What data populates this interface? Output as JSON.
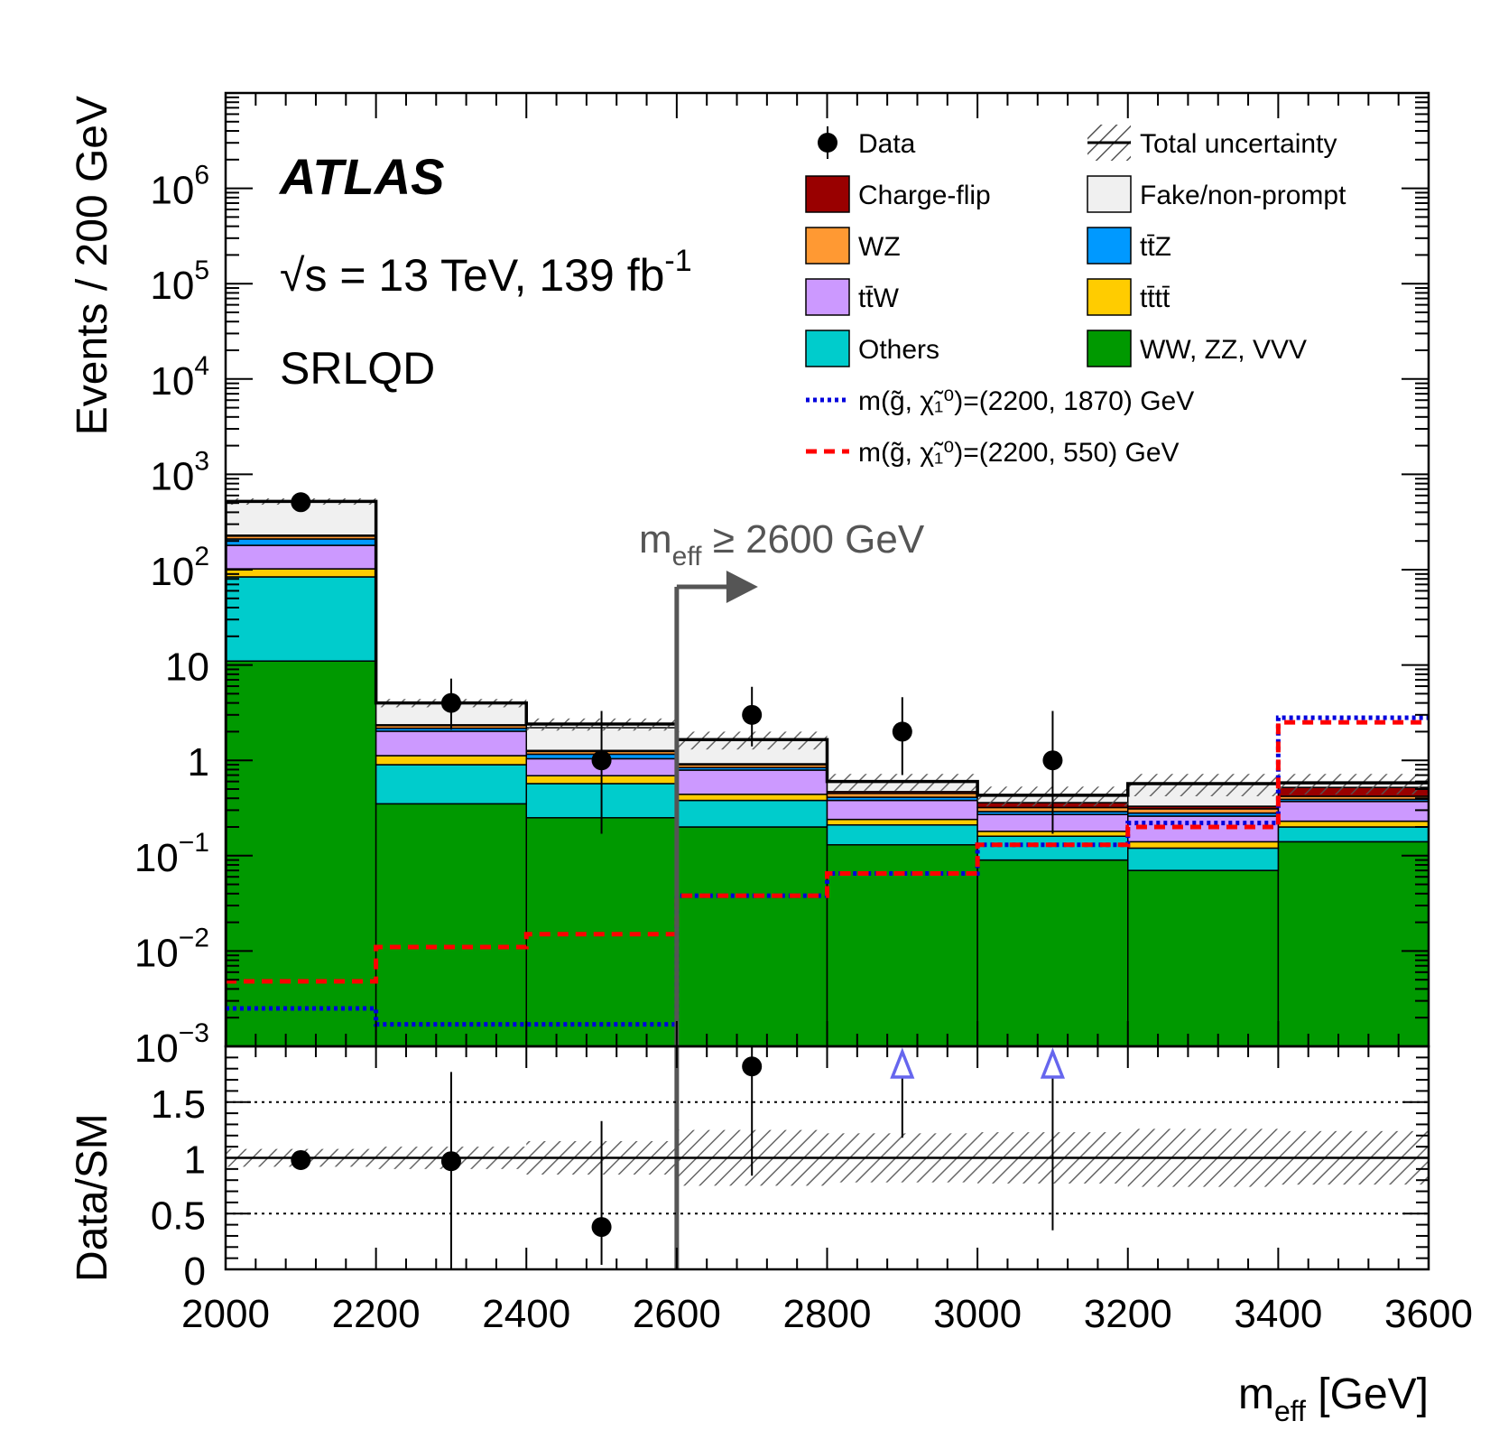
{
  "chart_data": {
    "type": "bar",
    "title": "ATLAS",
    "annotations": {
      "energy": "√s = 13 TeV, 139 fb",
      "energy_sup": "-1",
      "region": "SRLQD",
      "cut_main": "m",
      "cut_sub": "eff",
      "cut_rest": " ≥ 2600 GeV",
      "cut_value": 2600
    },
    "xlabel": "m",
    "xlabel_sub": "eff",
    "xlabel_rest": " [GeV]",
    "ylabel": "Events / 200 GeV",
    "ratio_ylabel": "Data/SM",
    "bin_edges": [
      2000,
      2200,
      2400,
      2600,
      2800,
      3000,
      3200,
      3400,
      3600
    ],
    "xlim": [
      2000,
      3600
    ],
    "ylim": [
      0.001,
      10000000
    ],
    "yscale": "log",
    "x_ticks": [
      "2000",
      "2200",
      "2400",
      "2600",
      "2800",
      "3000",
      "3200",
      "3400",
      "3600"
    ],
    "y_ticks": [
      {
        "value": 0.001,
        "base": "10",
        "exp": "−3"
      },
      {
        "value": 0.01,
        "base": "10",
        "exp": "−2"
      },
      {
        "value": 0.1,
        "base": "10",
        "exp": "−1"
      },
      {
        "value": 1,
        "base": "1",
        "exp": ""
      },
      {
        "value": 10,
        "base": "10",
        "exp": ""
      },
      {
        "value": 100,
        "base": "10",
        "exp": "2"
      },
      {
        "value": 1000,
        "base": "10",
        "exp": "3"
      },
      {
        "value": 10000,
        "base": "10",
        "exp": "4"
      },
      {
        "value": 100000,
        "base": "10",
        "exp": "5"
      },
      {
        "value": 1000000,
        "base": "10",
        "exp": "6"
      }
    ],
    "stack_series": [
      {
        "name": "WW, ZZ, VVV",
        "color": "#009900",
        "values": [
          11,
          0.35,
          0.25,
          0.2,
          0.13,
          0.09,
          0.07,
          0.14
        ]
      },
      {
        "name": "Others",
        "color": "#00cccc",
        "values": [
          73,
          0.55,
          0.32,
          0.18,
          0.08,
          0.07,
          0.05,
          0.06
        ]
      },
      {
        "name": "tt̄tt̄",
        "color": "#ffcc00",
        "values": [
          18,
          0.22,
          0.12,
          0.06,
          0.03,
          0.02,
          0.02,
          0.03
        ]
      },
      {
        "name": "tt̄W",
        "color": "#cc99ff",
        "values": [
          78,
          0.9,
          0.35,
          0.35,
          0.14,
          0.09,
          0.12,
          0.14
        ]
      },
      {
        "name": "tt̄Z",
        "color": "#0099ff",
        "values": [
          30,
          0.15,
          0.12,
          0.05,
          0.03,
          0.02,
          0.02,
          0.02
        ]
      },
      {
        "name": "WZ",
        "color": "#ff9933",
        "values": [
          15,
          0.15,
          0.08,
          0.06,
          0.04,
          0.03,
          0.03,
          0.03
        ]
      },
      {
        "name": "Charge-flip",
        "color": "#990000",
        "values": [
          5,
          0.04,
          0.03,
          0.02,
          0.02,
          0.04,
          0.02,
          0.1
        ]
      },
      {
        "name": "Fake/non-prompt",
        "color": "#f0f0f0",
        "values": [
          290,
          1.6,
          0.93,
          0.73,
          0.13,
          0.07,
          0.24,
          0.06
        ]
      }
    ],
    "total": [
      520,
      4.0,
      2.4,
      1.65,
      0.6,
      0.43,
      0.57,
      0.58
    ],
    "total_uncertainty": [
      40,
      0.4,
      0.35,
      0.35,
      0.12,
      0.1,
      0.15,
      0.14
    ],
    "data": {
      "name": "Data",
      "x": [
        2100,
        2300,
        2500,
        2700,
        2900,
        3100
      ],
      "y": [
        510,
        4,
        1,
        3,
        2,
        1
      ],
      "yerr_low": [
        22,
        1.9,
        0.83,
        1.6,
        1.3,
        0.83
      ],
      "yerr_high": [
        23,
        3.2,
        2.3,
        2.9,
        2.6,
        2.3
      ]
    },
    "signals": [
      {
        "name": "m(g̃, χ̃₁⁰)=(2200, 1870) GeV",
        "color": "#0000dd",
        "style": "dotted",
        "values": [
          0.0025,
          0.0017,
          0.0017,
          0.038,
          0.065,
          0.13,
          0.22,
          2.8
        ]
      },
      {
        "name": "m(g̃, χ̃₁⁰)=(2200, 550) GeV",
        "color": "#ff0000",
        "style": "dashed",
        "values": [
          0.0048,
          0.011,
          0.015,
          0.038,
          0.065,
          0.13,
          0.2,
          2.5
        ]
      }
    ],
    "legend": {
      "placement": "top-right",
      "entries": [
        {
          "label": "Data",
          "kind": "marker",
          "color": "#000000"
        },
        {
          "label": "Total uncertainty",
          "kind": "hatch",
          "color": "#000000"
        },
        {
          "label": "Charge-flip",
          "kind": "box",
          "color": "#990000"
        },
        {
          "label": "Fake/non-prompt",
          "kind": "box",
          "color": "#f0f0f0"
        },
        {
          "label": "WZ",
          "kind": "box",
          "color": "#ff9933"
        },
        {
          "label": "tt̄Z",
          "kind": "box",
          "color": "#0099ff"
        },
        {
          "label": "tt̄W",
          "kind": "box",
          "color": "#cc99ff"
        },
        {
          "label": "tt̄tt̄",
          "kind": "box",
          "color": "#ffcc00"
        },
        {
          "label": "Others",
          "kind": "box",
          "color": "#00cccc"
        },
        {
          "label": "WW, ZZ, VVV",
          "kind": "box",
          "color": "#009900"
        },
        {
          "label": "m(g̃, χ̃₁⁰)=(2200, 1870) GeV",
          "kind": "line-dotted",
          "color": "#0000dd"
        },
        {
          "label": "m(g̃, χ̃₁⁰)=(2200, 550) GeV",
          "kind": "line-dashed",
          "color": "#ff0000"
        }
      ]
    },
    "ratio": {
      "ylim": [
        0,
        2
      ],
      "y_ticks": [
        "0",
        "0.5",
        "1",
        "1.5"
      ],
      "y_tick_values": [
        0,
        0.5,
        1,
        1.5
      ],
      "reference_lines": [
        0.5,
        1,
        1.5
      ],
      "points": [
        {
          "x": 2100,
          "y": 0.98,
          "err_low": 0.05,
          "err_high": 0.05
        },
        {
          "x": 2300,
          "y": 0.97,
          "err_low": 0.98,
          "err_high": 0.8
        },
        {
          "x": 2500,
          "y": 0.38,
          "err_low": 0.34,
          "err_high": 0.95
        },
        {
          "x": 2700,
          "y": 1.82,
          "err_low": 0.98,
          "err_high": 0.18
        }
      ],
      "off_scale": [
        {
          "x": 2900,
          "y_low": 1.18
        },
        {
          "x": 3100,
          "y_low": 0.35
        }
      ],
      "uncertainty_band": [
        0.08,
        0.1,
        0.15,
        0.25,
        0.22,
        0.23,
        0.26,
        0.24
      ]
    }
  }
}
